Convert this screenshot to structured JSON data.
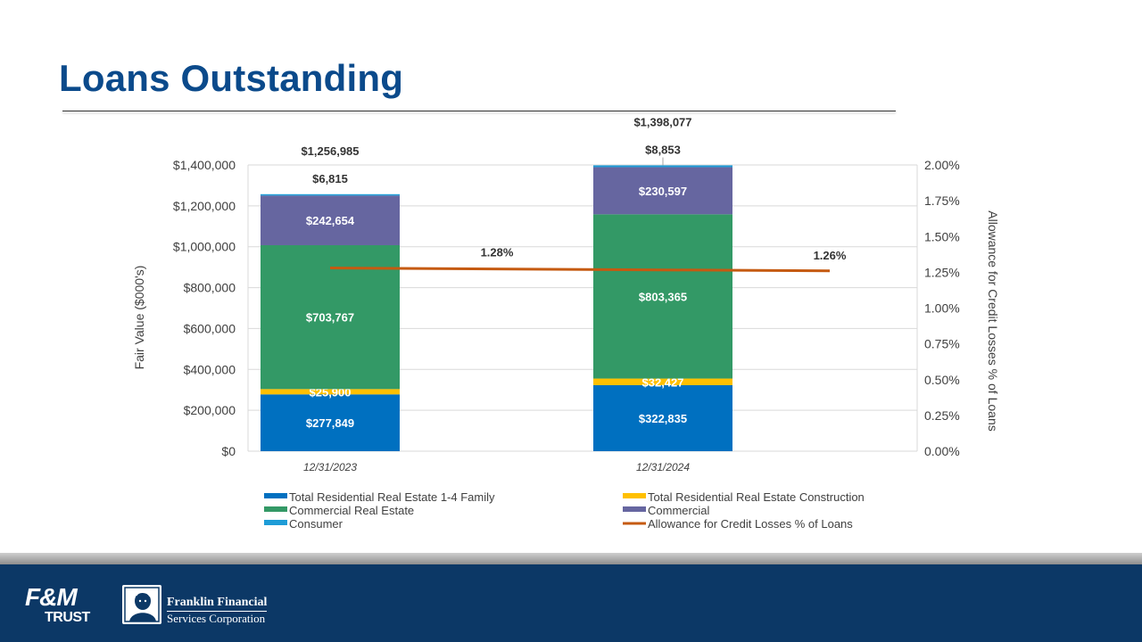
{
  "slide": {
    "title": "Loans Outstanding"
  },
  "footer": {
    "fm_line1": "F&M",
    "fm_line2": "TRUST",
    "ffs_line1": "Franklin Financial",
    "ffs_line2": "Services Corporation"
  },
  "chart_data": {
    "type": "bar",
    "stacked": true,
    "categories": [
      "12/31/2023",
      "12/31/2024"
    ],
    "series": [
      {
        "name": "Total Residential Real Estate 1-4 Family",
        "values": [
          277849,
          322835
        ],
        "labels": [
          "$277,849",
          "$322,835"
        ],
        "color": "#0070c0",
        "label_color": "#ffffff"
      },
      {
        "name": "Total Residential Real Estate Construction",
        "values": [
          25900,
          32427
        ],
        "labels": [
          "$25,900",
          "$32,427"
        ],
        "color": "#ffc000",
        "label_color": "#ffffff"
      },
      {
        "name": "Commercial Real Estate",
        "values": [
          703767,
          803365
        ],
        "labels": [
          "$703,767",
          "$803,365"
        ],
        "color": "#339966",
        "label_color": "#ffffff"
      },
      {
        "name": "Commercial",
        "values": [
          242654,
          230597
        ],
        "labels": [
          "$242,654",
          "$230,597"
        ],
        "color": "#6666a0",
        "label_color": "#ffffff"
      },
      {
        "name": "Consumer",
        "values": [
          6815,
          8853
        ],
        "labels": [
          "$6,815",
          "$8,853"
        ],
        "color": "#1e9cd7",
        "label_color": "#333333"
      }
    ],
    "totals": [
      1256985,
      1398077
    ],
    "total_labels": [
      "$1,256,985",
      "$1,398,077"
    ],
    "line": {
      "name": "Allowance for Credit Losses % of Loans",
      "values": [
        1.28,
        1.26
      ],
      "labels": [
        "1.28%",
        "1.26%"
      ],
      "color": "#c55a11",
      "axis": "right"
    },
    "ylabel": "Fair Value ($000's)",
    "y2label": "Allowance for Credit Losses % of Loans",
    "ylim": [
      0,
      1400000
    ],
    "y_ticks": [
      0,
      200000,
      400000,
      600000,
      800000,
      1000000,
      1200000,
      1400000
    ],
    "y_tick_labels": [
      "$0",
      "$200,000",
      "$400,000",
      "$600,000",
      "$800,000",
      "$1,000,000",
      "$1,200,000",
      "$1,400,000"
    ],
    "y2lim": [
      0,
      2.0
    ],
    "y2_ticks": [
      0,
      0.25,
      0.5,
      0.75,
      1.0,
      1.25,
      1.5,
      1.75,
      2.0
    ],
    "y2_tick_labels": [
      "0.00%",
      "0.25%",
      "0.50%",
      "0.75%",
      "1.00%",
      "1.25%",
      "1.50%",
      "1.75%",
      "2.00%"
    ],
    "grid": true,
    "legend_position": "bottom"
  }
}
